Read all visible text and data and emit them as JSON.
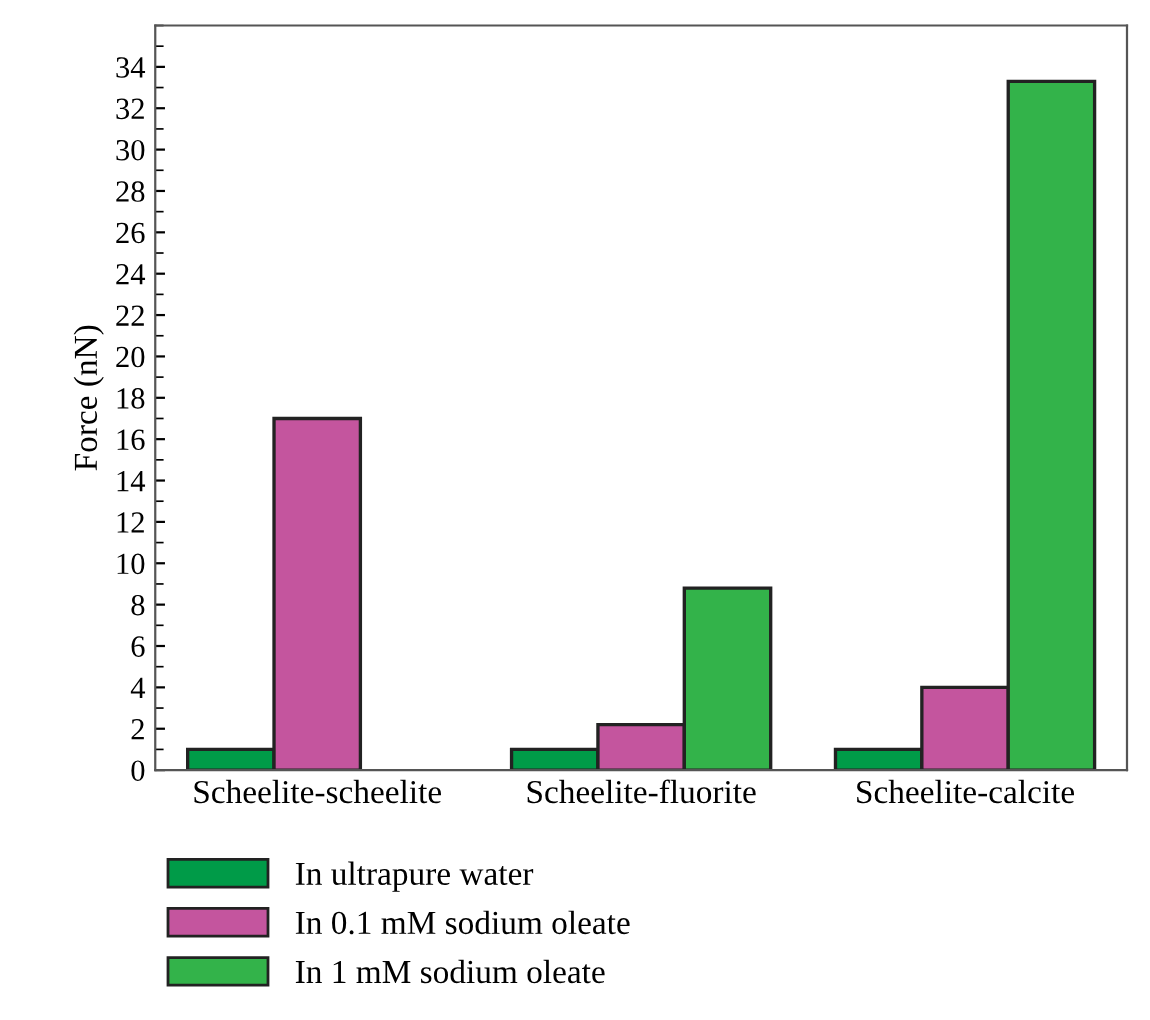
{
  "chart_data": {
    "type": "bar",
    "ylabel": "Force (nN)",
    "categories": [
      "Scheelite-scheelite",
      "Scheelite-fluorite",
      "Scheelite-calcite"
    ],
    "series": [
      {
        "name": "In ultrapure water",
        "color": "#009b48",
        "values": [
          1.0,
          1.0,
          1.0
        ]
      },
      {
        "name": "In 0.1 mM sodium oleate",
        "color": "#c4559e",
        "values": [
          17.0,
          2.2,
          4.0
        ]
      },
      {
        "name": "In 1 mM sodium oleate",
        "color": "#33b34a",
        "values": [
          null,
          8.8,
          33.3
        ]
      }
    ],
    "ylim": [
      0,
      36
    ],
    "yticks": [
      0,
      2,
      4,
      6,
      8,
      10,
      12,
      14,
      16,
      18,
      20,
      22,
      24,
      26,
      28,
      30,
      32,
      34
    ],
    "grid": false,
    "legend": "bottom"
  }
}
